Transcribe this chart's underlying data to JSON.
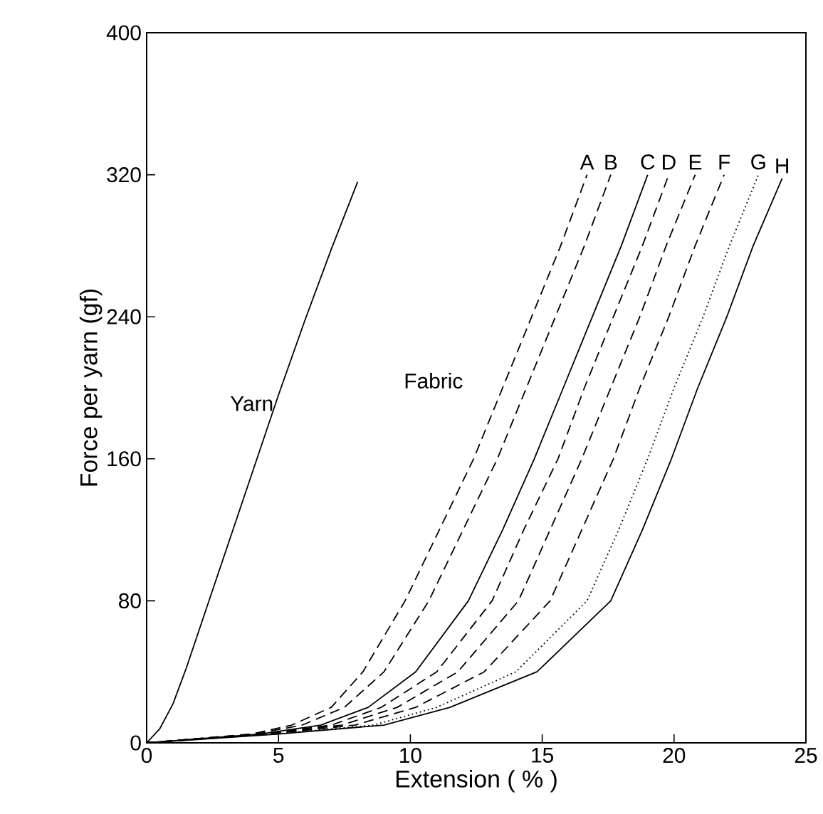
{
  "chart_data": {
    "type": "line",
    "xlabel": "Extension ( % )",
    "ylabel": "Force per yarn (gf)",
    "xlim": [
      0,
      25
    ],
    "ylim": [
      0,
      400
    ],
    "xticks": [
      0,
      5,
      10,
      15,
      20,
      25
    ],
    "yticks": [
      0,
      80,
      160,
      240,
      320,
      400
    ],
    "grid": false,
    "legend": false,
    "marker": "none",
    "annotations": [
      "Fabric"
    ],
    "series": [
      {
        "name": "Yarn",
        "color": "#000000",
        "line_style": "solid",
        "x": [
          0,
          0.5,
          1,
          1.5,
          2,
          3,
          4,
          5,
          6,
          7,
          8
        ],
        "values": [
          0,
          8,
          22,
          42,
          64,
          108,
          152,
          196,
          238,
          278,
          316
        ]
      },
      {
        "name": "A",
        "color": "#000000",
        "line_style": "dashed",
        "x": [
          0,
          4.0,
          5.5,
          7.0,
          8.2,
          9.8,
          11.1,
          12.4,
          13.5,
          14.6,
          15.7,
          16.7
        ],
        "values": [
          0,
          5,
          10,
          20,
          40,
          80,
          120,
          160,
          200,
          240,
          280,
          320
        ]
      },
      {
        "name": "B",
        "color": "#000000",
        "line_style": "dashed",
        "x": [
          0,
          4.1,
          5.9,
          7.5,
          9.0,
          10.7,
          12.0,
          13.3,
          14.4,
          15.5,
          16.6,
          17.6
        ],
        "values": [
          0,
          5,
          10,
          20,
          40,
          80,
          120,
          160,
          200,
          240,
          280,
          320
        ]
      },
      {
        "name": "C",
        "color": "#000000",
        "line_style": "solid",
        "x": [
          0,
          4.3,
          6.6,
          8.4,
          10.2,
          12.2,
          13.5,
          14.7,
          15.8,
          16.9,
          18.0,
          19.0
        ],
        "values": [
          0,
          5,
          10,
          20,
          40,
          80,
          120,
          160,
          200,
          240,
          280,
          320
        ]
      },
      {
        "name": "D",
        "color": "#000000",
        "line_style": "dashed",
        "x": [
          0,
          4.4,
          7.0,
          8.9,
          11.0,
          13.1,
          14.3,
          15.6,
          16.6,
          17.7,
          18.8,
          19.8
        ],
        "values": [
          0,
          5,
          10,
          20,
          40,
          80,
          120,
          160,
          200,
          240,
          280,
          320
        ]
      },
      {
        "name": "E",
        "color": "#000000",
        "line_style": "dashed",
        "x": [
          0,
          4.6,
          7.4,
          9.5,
          11.8,
          14.1,
          15.3,
          16.5,
          17.6,
          18.7,
          19.7,
          20.8
        ],
        "values": [
          0,
          5,
          10,
          20,
          40,
          80,
          120,
          160,
          200,
          240,
          280,
          320
        ]
      },
      {
        "name": "F",
        "color": "#000000",
        "line_style": "dashed",
        "x": [
          0,
          4.7,
          7.9,
          10.2,
          12.8,
          15.3,
          16.5,
          17.7,
          18.7,
          19.8,
          20.8,
          21.9
        ],
        "values": [
          0,
          5,
          10,
          20,
          40,
          80,
          120,
          160,
          200,
          240,
          280,
          320
        ]
      },
      {
        "name": "G",
        "color": "#000000",
        "line_style": "dotted",
        "x": [
          0,
          4.9,
          8.6,
          11.0,
          14.0,
          16.7,
          17.9,
          19.0,
          20.0,
          21.1,
          22.1,
          23.2
        ],
        "values": [
          0,
          5,
          10,
          20,
          40,
          80,
          120,
          160,
          200,
          240,
          280,
          320
        ]
      },
      {
        "name": "H",
        "color": "#000000",
        "line_style": "solid",
        "x": [
          0,
          5.0,
          9.0,
          11.5,
          14.8,
          17.6,
          18.8,
          19.9,
          20.9,
          22.0,
          23.0,
          24.1
        ],
        "values": [
          0,
          5,
          10,
          20,
          40,
          80,
          120,
          160,
          200,
          240,
          280,
          318
        ]
      }
    ]
  }
}
